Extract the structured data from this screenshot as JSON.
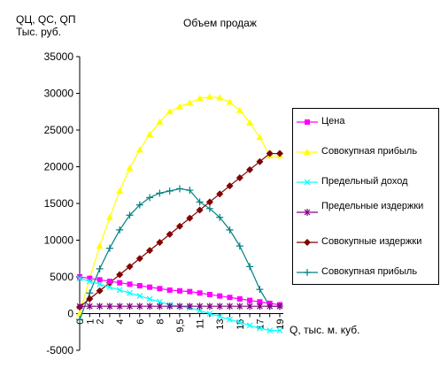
{
  "chart_data": {
    "type": "line",
    "title": "Объем продаж",
    "ylabel_lines": [
      "QЦ, QC, QП",
      "Тыс. руб."
    ],
    "xlabel": "Q, тыс. м. куб.",
    "ylim": [
      -5000,
      35000
    ],
    "yticks": [
      -5000,
      0,
      5000,
      10000,
      15000,
      20000,
      25000,
      30000,
      35000
    ],
    "xticks": [
      "0",
      "1",
      "2",
      "4",
      "6",
      "8",
      "9,5",
      "11",
      "13",
      "15",
      "17",
      "19"
    ],
    "x": [
      0,
      1,
      2,
      3,
      4,
      5,
      6,
      7,
      8,
      9,
      9.5,
      10,
      11,
      12,
      13,
      14,
      15,
      16,
      17,
      18,
      19
    ],
    "grid": false,
    "legend_position": "right",
    "series": [
      {
        "name": "Цена",
        "color": "#ff00ff",
        "marker": "square",
        "values": [
          5000,
          4800,
          4600,
          4400,
          4200,
          4000,
          3800,
          3600,
          3400,
          3200,
          3100,
          3000,
          2800,
          2600,
          2400,
          2200,
          2000,
          1800,
          1600,
          1400,
          1200
        ]
      },
      {
        "name": "Совокупная прибыль",
        "color": "#ffff00",
        "marker": "triangle",
        "values": [
          0,
          4800,
          9200,
          13100,
          16700,
          19800,
          22300,
          24400,
          26100,
          27500,
          28200,
          28700,
          29300,
          29500,
          29400,
          28800,
          27700,
          26000,
          24000,
          21500,
          21500
        ]
      },
      {
        "name": "Предельный доход",
        "color": "#00ffff",
        "marker": "x",
        "values": [
          4800,
          4400,
          4000,
          3600,
          3200,
          2800,
          2400,
          2000,
          1600,
          1200,
          1000,
          800,
          400,
          0,
          -400,
          -800,
          -1200,
          -1600,
          -2000,
          -2300,
          -2300
        ]
      },
      {
        "name": "Предельные издержки",
        "color": "#800080",
        "marker": "star",
        "values": [
          1000,
          1000,
          1000,
          1000,
          1000,
          1000,
          1000,
          1000,
          1000,
          1000,
          1000,
          1000,
          1000,
          1000,
          1000,
          1000,
          1000,
          1000,
          1000,
          1000,
          1000
        ]
      },
      {
        "name": "Совокупные издержки",
        "color": "#800000",
        "marker": "diamond",
        "values": [
          900,
          2000,
          3100,
          4200,
          5300,
          6400,
          7500,
          8600,
          9700,
          10800,
          11900,
          13000,
          14100,
          15200,
          16300,
          17400,
          18500,
          19600,
          20700,
          21800,
          21800
        ]
      },
      {
        "name": "Совокупная прибыль",
        "color": "#008080",
        "marker": "plus",
        "values": [
          -800,
          2800,
          6100,
          8900,
          11400,
          13400,
          14800,
          15800,
          16400,
          16700,
          17000,
          16800,
          15200,
          14300,
          13100,
          11400,
          9200,
          6400,
          3300,
          1000,
          1000
        ]
      }
    ]
  }
}
